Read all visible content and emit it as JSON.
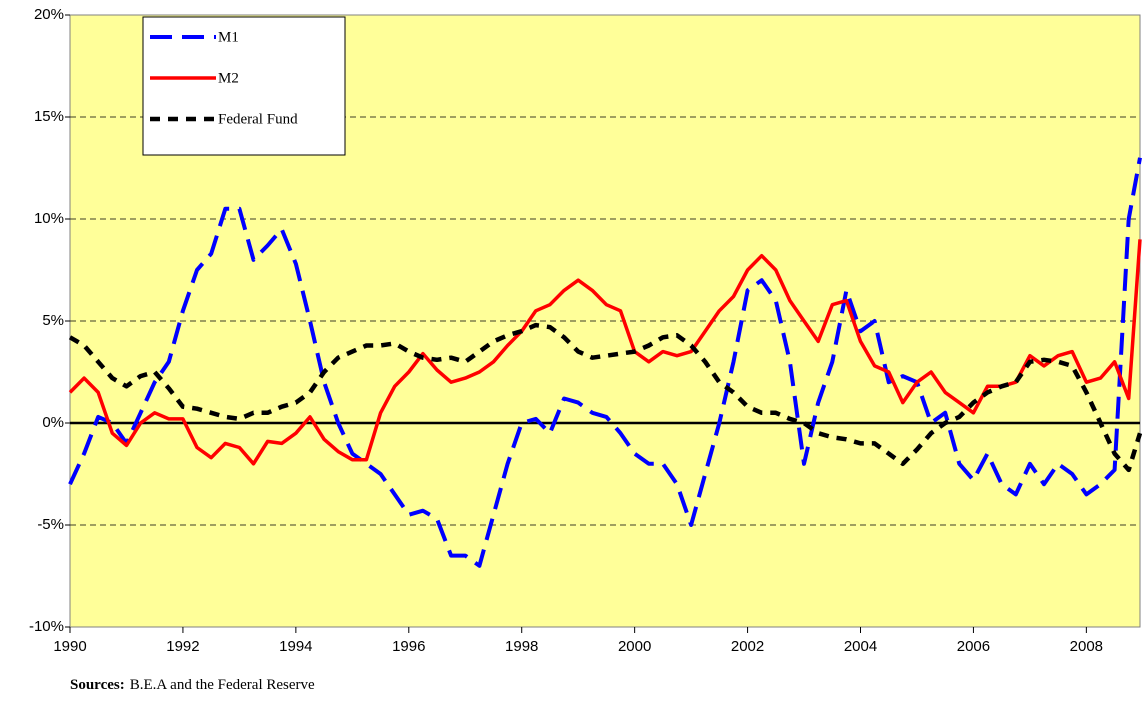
{
  "chart_data": {
    "type": "line",
    "x": [
      1990,
      1990.25,
      1990.5,
      1990.75,
      1991,
      1991.25,
      1991.5,
      1991.75,
      1992,
      1992.25,
      1992.5,
      1992.75,
      1993,
      1993.25,
      1993.5,
      1993.75,
      1994,
      1994.25,
      1994.5,
      1994.75,
      1995,
      1995.25,
      1995.5,
      1995.75,
      1996,
      1996.25,
      1996.5,
      1996.75,
      1997,
      1997.25,
      1997.5,
      1997.75,
      1998,
      1998.25,
      1998.5,
      1998.75,
      1999,
      1999.25,
      1999.5,
      1999.75,
      2000,
      2000.25,
      2000.5,
      2000.75,
      2001,
      2001.25,
      2001.5,
      2001.75,
      2002,
      2002.25,
      2002.5,
      2002.75,
      2003,
      2003.25,
      2003.5,
      2003.75,
      2004,
      2004.25,
      2004.5,
      2004.75,
      2005,
      2005.25,
      2005.5,
      2005.75,
      2006,
      2006.25,
      2006.5,
      2006.75,
      2007,
      2007.25,
      2007.5,
      2007.75,
      2008,
      2008.25,
      2008.5,
      2008.75,
      2008.95
    ],
    "series": [
      {
        "name": "M1",
        "color": "#0000ff",
        "values": [
          -3,
          -1.5,
          0.3,
          0,
          -1,
          0.5,
          2,
          3,
          5.5,
          7.5,
          8.3,
          10.5,
          10.5,
          8,
          8.7,
          9.5,
          7.8,
          5,
          2,
          0,
          -1.5,
          -2,
          -2.5,
          -3.5,
          -4.5,
          -4.3,
          -4.7,
          -6.5,
          -6.5,
          -7,
          -4.5,
          -2,
          0,
          0.2,
          -0.5,
          1.2,
          1,
          0.5,
          0.3,
          -0.5,
          -1.5,
          -2,
          -2,
          -3,
          -5,
          -2.5,
          0,
          3,
          6.5,
          7,
          6,
          3,
          -2,
          1,
          3,
          6.5,
          4.5,
          5,
          2,
          2.3,
          2,
          0,
          0.5,
          -2,
          -2.8,
          -1.5,
          -3,
          -3.5,
          -2,
          -3,
          -2,
          -2.5,
          -3.5,
          -3,
          -2.3,
          10,
          13
        ]
      },
      {
        "name": "M2",
        "color": "#ff0000",
        "values": [
          1.5,
          2.2,
          1.5,
          -0.5,
          -1.1,
          0,
          0.5,
          0.2,
          0.2,
          -1.2,
          -1.7,
          -1,
          -1.2,
          -2,
          -0.9,
          -1,
          -0.5,
          0.3,
          -0.8,
          -1.4,
          -1.8,
          -1.8,
          0.5,
          1.8,
          2.5,
          3.4,
          2.6,
          2,
          2.2,
          2.5,
          3,
          3.8,
          4.5,
          5.5,
          5.8,
          6.5,
          7,
          6.5,
          5.8,
          5.5,
          3.5,
          3,
          3.5,
          3.3,
          3.5,
          4.5,
          5.5,
          6.2,
          7.5,
          8.2,
          7.5,
          6,
          5,
          4,
          5.8,
          6,
          4,
          2.8,
          2.5,
          1,
          2,
          2.5,
          1.5,
          1,
          0.5,
          1.8,
          1.8,
          2,
          3.3,
          2.8,
          3.3,
          3.5,
          2,
          2.2,
          3,
          1.2,
          9
        ]
      },
      {
        "name": "Federal Fund",
        "color": "#000000",
        "values": [
          4.2,
          3.8,
          3,
          2.2,
          1.8,
          2.3,
          2.5,
          1.7,
          0.8,
          0.7,
          0.5,
          0.3,
          0.2,
          0.5,
          0.5,
          0.8,
          1,
          1.5,
          2.5,
          3.2,
          3.5,
          3.8,
          3.8,
          3.9,
          3.5,
          3.2,
          3.1,
          3.2,
          3,
          3.5,
          4,
          4.3,
          4.5,
          4.8,
          4.7,
          4.2,
          3.5,
          3.2,
          3.3,
          3.4,
          3.5,
          3.8,
          4.2,
          4.3,
          3.8,
          3,
          2,
          1.5,
          0.8,
          0.5,
          0.5,
          0.2,
          0,
          -0.5,
          -0.7,
          -0.8,
          -1,
          -1,
          -1.5,
          -2,
          -1.3,
          -0.5,
          0,
          0.3,
          1,
          1.5,
          1.8,
          2,
          3,
          3.1,
          3,
          2.8,
          1.5,
          0,
          -1.5,
          -2.3,
          -0.5
        ]
      }
    ],
    "xlim": [
      1990,
      2008.95
    ],
    "xticks": [
      1990,
      1992,
      1994,
      1996,
      1998,
      2000,
      2002,
      2004,
      2006,
      2008
    ],
    "ylim": [
      -10,
      20
    ],
    "yticks": [
      {
        "value": -10,
        "label": "-10%"
      },
      {
        "value": -5,
        "label": "-5%"
      },
      {
        "value": 0,
        "label": "0%"
      },
      {
        "value": 5,
        "label": "5%"
      },
      {
        "value": 10,
        "label": "10%"
      },
      {
        "value": 15,
        "label": "15%"
      },
      {
        "value": 20,
        "label": "20%"
      }
    ],
    "grid": true,
    "legend": "upper left",
    "source_label": "Sources:",
    "source": "B.E.A and the Federal Reserve"
  }
}
